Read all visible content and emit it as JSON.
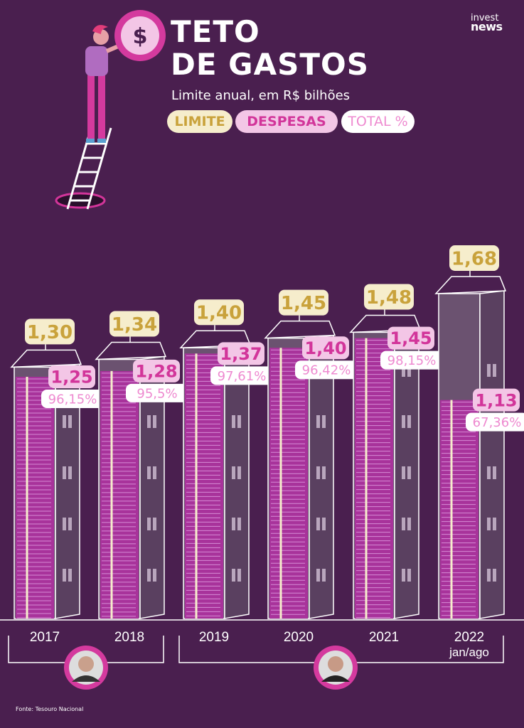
{
  "header": {
    "title_line1": "TETO",
    "title_line2": "DE GASTOS",
    "subtitle": "Limite anual, em R$ bilhões",
    "brand_top": "invest",
    "brand_bottom": "news",
    "coin_symbol": "$"
  },
  "legend": {
    "limite": "LIMITE",
    "despesas": "DESPESAS",
    "total": "TOTAL %"
  },
  "colors": {
    "background": "#4a1f4f",
    "limite_pill": "#f6edcc",
    "limite_text": "#c9a23b",
    "despesas_pill": "#f3c6e6",
    "despesas_text": "#d2359a",
    "total_pill": "#ffffff",
    "total_text": "#ee8ad0",
    "building_face": "#6b5270",
    "building_side": "#5a4060",
    "money_pink": "#a8339b"
  },
  "chart_data": {
    "type": "bar",
    "categories": [
      "2017",
      "2018",
      "2019",
      "2020",
      "2021",
      "2022"
    ],
    "category_sublabels": [
      "",
      "",
      "",
      "",
      "",
      "jan/ago"
    ],
    "series": [
      {
        "name": "LIMITE",
        "values": [
          1.3,
          1.34,
          1.4,
          1.45,
          1.48,
          1.68
        ],
        "labels": [
          "1,30",
          "1,34",
          "1,40",
          "1,45",
          "1,48",
          "1,68"
        ]
      },
      {
        "name": "DESPESAS",
        "values": [
          1.25,
          1.28,
          1.37,
          1.4,
          1.45,
          1.13
        ],
        "labels": [
          "1,25",
          "1,28",
          "1,37",
          "1,40",
          "1,45",
          "1,13"
        ]
      },
      {
        "name": "TOTAL %",
        "values": [
          96.15,
          95.5,
          97.61,
          96.42,
          98.15,
          67.36
        ],
        "labels": [
          "96,15%",
          "95,5%",
          "97,61%",
          "96,42%",
          "98,15%",
          "67,36%"
        ]
      }
    ],
    "title": "TETO DE GASTOS",
    "subtitle": "Limite anual, em R$ bilhões",
    "ylim": [
      0,
      1.68
    ],
    "groups": [
      {
        "categories": [
          "2017",
          "2018"
        ],
        "icon": "president-portrait-1"
      },
      {
        "categories": [
          "2019",
          "2020",
          "2021",
          "2022"
        ],
        "icon": "president-portrait-2"
      }
    ]
  },
  "source": "Fonte: Tesouro Nacional"
}
